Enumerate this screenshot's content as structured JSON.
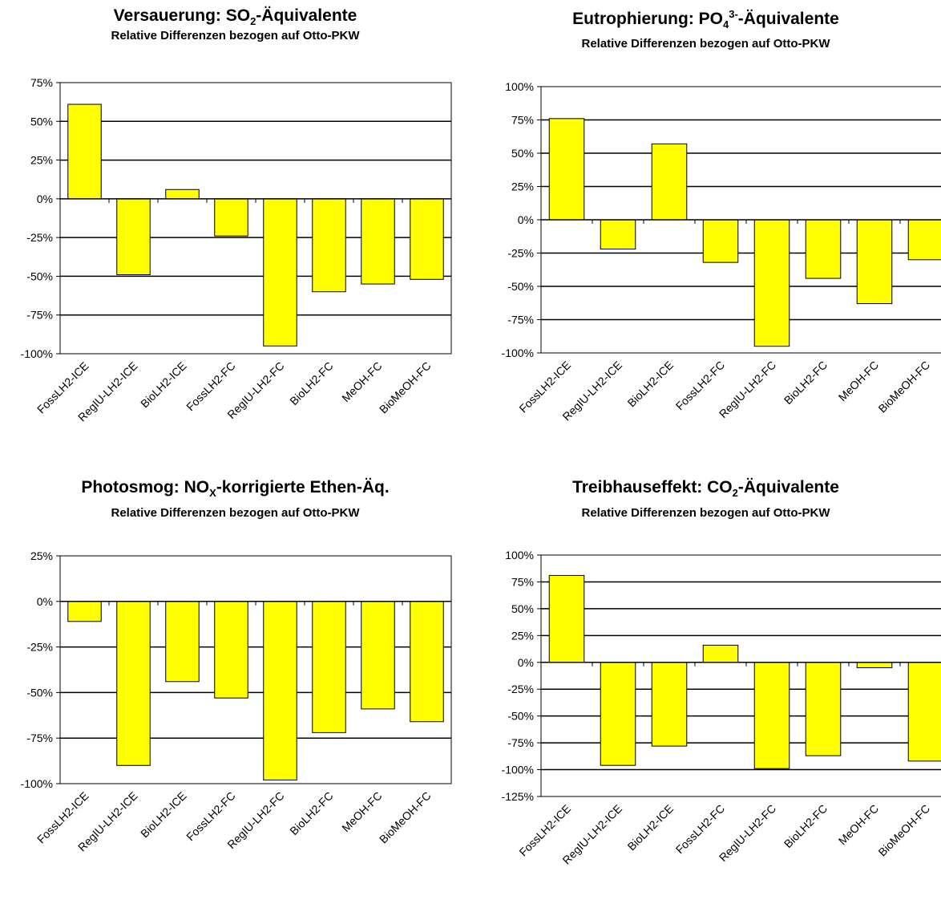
{
  "chart_data": [
    {
      "type": "bar",
      "title_parts": [
        "Versauerung: SO",
        "2",
        "-Äquivalente"
      ],
      "title_scripts": [
        "",
        "sub",
        ""
      ],
      "subtitle": "Relative Differenzen bezogen auf Otto-PKW",
      "categories": [
        "FossLH2-ICE",
        "RegIU-LH2-ICE",
        "BioLH2-ICE",
        "FossLH2-FC",
        "RegIU-LH2-FC",
        "BioLH2-FC",
        "MeOH-FC",
        "BioMeOH-FC"
      ],
      "values": [
        61,
        -49,
        6,
        -24,
        -95,
        -60,
        -55,
        -52
      ],
      "ylim": [
        -100,
        75
      ],
      "yticks": [
        75,
        50,
        25,
        0,
        -25,
        -50,
        -75,
        -100
      ],
      "tick_labels": [
        "75%",
        "50%",
        "25%",
        "0%",
        "-25%",
        "-50%",
        "-75%",
        "-100%"
      ],
      "bar_color": "#ffff00",
      "grid": true
    },
    {
      "type": "bar",
      "title_parts": [
        "Eutrophierung: PO",
        "4",
        "3-",
        "-Äquivalente"
      ],
      "title_scripts": [
        "",
        "sub",
        "sup",
        ""
      ],
      "subtitle": "Relative Differenzen bezogen auf Otto-PKW",
      "categories": [
        "FossLH2-ICE",
        "RegIU-LH2-ICE",
        "BioLH2-ICE",
        "FossLH2-FC",
        "RegIU-LH2-FC",
        "BioLH2-FC",
        "MeOH-FC",
        "BioMeOH-FC"
      ],
      "values": [
        76,
        -22,
        57,
        -32,
        -95,
        -44,
        -63,
        -30
      ],
      "ylim": [
        -100,
        100
      ],
      "yticks": [
        100,
        75,
        50,
        25,
        0,
        -25,
        -50,
        -75,
        -100
      ],
      "tick_labels": [
        "100%",
        "75%",
        "50%",
        "25%",
        "0%",
        "-25%",
        "-50%",
        "-75%",
        "-100%"
      ],
      "bar_color": "#ffff00",
      "grid": true
    },
    {
      "type": "bar",
      "title_parts": [
        "Photosmog: NO",
        "X",
        "-korrigierte Ethen-Äq."
      ],
      "title_scripts": [
        "",
        "sub",
        ""
      ],
      "subtitle": "Relative Differenzen bezogen auf Otto-PKW",
      "categories": [
        "FossLH2-ICE",
        "RegIU-LH2-ICE",
        "BioLH2-ICE",
        "FossLH2-FC",
        "RegIU-LH2-FC",
        "BioLH2-FC",
        "MeOH-FC",
        "BioMeOH-FC"
      ],
      "values": [
        -11,
        -90,
        -44,
        -53,
        -98,
        -72,
        -59,
        -66
      ],
      "ylim": [
        -100,
        25
      ],
      "yticks": [
        25,
        0,
        -25,
        -50,
        -75,
        -100
      ],
      "tick_labels": [
        "25%",
        "0%",
        "-25%",
        "-50%",
        "-75%",
        "-100%"
      ],
      "bar_color": "#ffff00",
      "grid": true
    },
    {
      "type": "bar",
      "title_parts": [
        "Treibhauseffekt: CO",
        "2",
        "-Äquivalente"
      ],
      "title_scripts": [
        "",
        "sub",
        ""
      ],
      "subtitle": "Relative Differenzen bezogen auf Otto-PKW",
      "categories": [
        "FossLH2-ICE",
        "RegIU-LH2-ICE",
        "BioLH2-ICE",
        "FossLH2-FC",
        "RegIU-LH2-FC",
        "BioLH2-FC",
        "MeOH-FC",
        "BioMeOH-FC"
      ],
      "values": [
        81,
        -96,
        -78,
        16,
        -99,
        -87,
        -5,
        -92
      ],
      "ylim": [
        -125,
        100
      ],
      "yticks": [
        100,
        75,
        50,
        25,
        0,
        -25,
        -50,
        -75,
        -100,
        -125
      ],
      "tick_labels": [
        "100%",
        "75%",
        "50%",
        "25%",
        "0%",
        "-25%",
        "-50%",
        "-75%",
        "-100%",
        "-125%"
      ],
      "bar_color": "#ffff00",
      "grid": true
    }
  ]
}
